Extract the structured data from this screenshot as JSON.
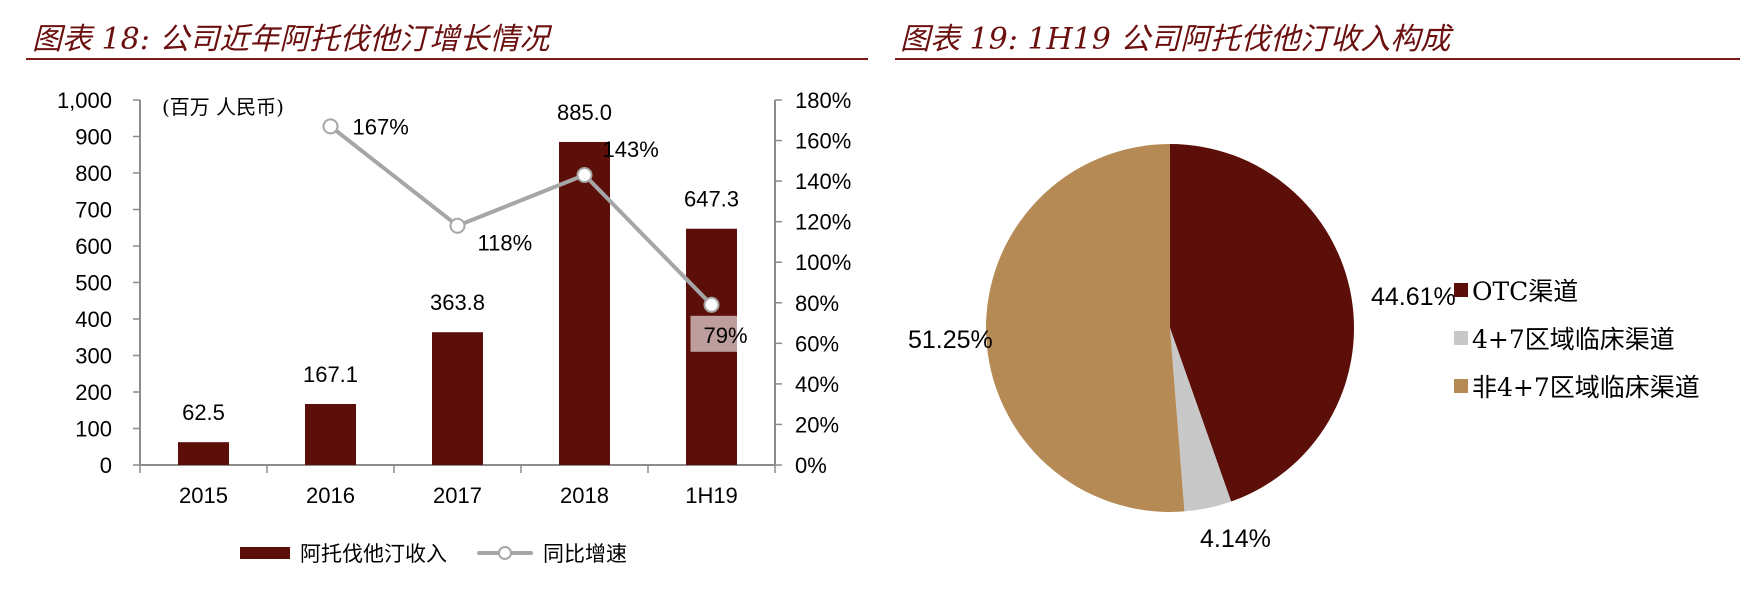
{
  "left": {
    "title": "图表 18:  公司近年阿托伐他汀增长情况",
    "unit_label": "(百万 人民币)",
    "legend": {
      "bar_label": "阿托伐他汀收入",
      "line_label": "同比增速"
    }
  },
  "right": {
    "title": "图表 19: 1H19 公司阿托伐他汀收入构成",
    "legend": [
      {
        "label": "OTC渠道",
        "color": "#5c0e09"
      },
      {
        "label": "4+7区域临床渠道",
        "color": "#c8c8c8"
      },
      {
        "label": "非4+7区域临床渠道",
        "color": "#b58a55"
      }
    ],
    "slice_labels": [
      "44.61%",
      "4.14%",
      "51.25%"
    ]
  },
  "colors": {
    "bar": "#5c0e09",
    "line": "#a6a6a6",
    "title": "#6b0f0f",
    "pie_otc": "#5c0e09",
    "pie_47": "#c8c8c8",
    "pie_non47": "#b58a55"
  },
  "chart_data": [
    {
      "type": "bar",
      "title": "图表 18: 公司近年阿托伐他汀增长情况",
      "categories": [
        "2015",
        "2016",
        "2017",
        "2018",
        "1H19"
      ],
      "series": [
        {
          "name": "阿托伐他汀收入",
          "type": "bar",
          "axis": "left",
          "values": [
            62.5,
            167.1,
            363.8,
            885.0,
            647.3
          ],
          "labels": [
            "62.5",
            "167.1",
            "363.8",
            "885.0",
            "647.3"
          ]
        },
        {
          "name": "同比增速",
          "type": "line",
          "axis": "right",
          "values": [
            null,
            167,
            118,
            143,
            79
          ],
          "labels": [
            "",
            "167%",
            "118%",
            "143%",
            "79%"
          ]
        }
      ],
      "ylabel": "(百万 人民币)",
      "ylim": [
        0,
        1000
      ],
      "yticks": [
        "0",
        "100",
        "200",
        "300",
        "400",
        "500",
        "600",
        "700",
        "800",
        "900",
        "1,000"
      ],
      "y2lim": [
        0,
        180
      ],
      "y2ticks": [
        "0%",
        "20%",
        "40%",
        "60%",
        "80%",
        "100%",
        "120%",
        "140%",
        "160%",
        "180%"
      ],
      "legend_position": "bottom",
      "grid": false
    },
    {
      "type": "pie",
      "title": "图表 19: 1H19 公司阿托伐他汀收入构成",
      "categories": [
        "OTC渠道",
        "4+7区域临床渠道",
        "非4+7区域临床渠道"
      ],
      "values": [
        44.61,
        4.14,
        51.25
      ],
      "labels": [
        "44.61%",
        "4.14%",
        "51.25%"
      ],
      "legend_position": "right"
    }
  ]
}
